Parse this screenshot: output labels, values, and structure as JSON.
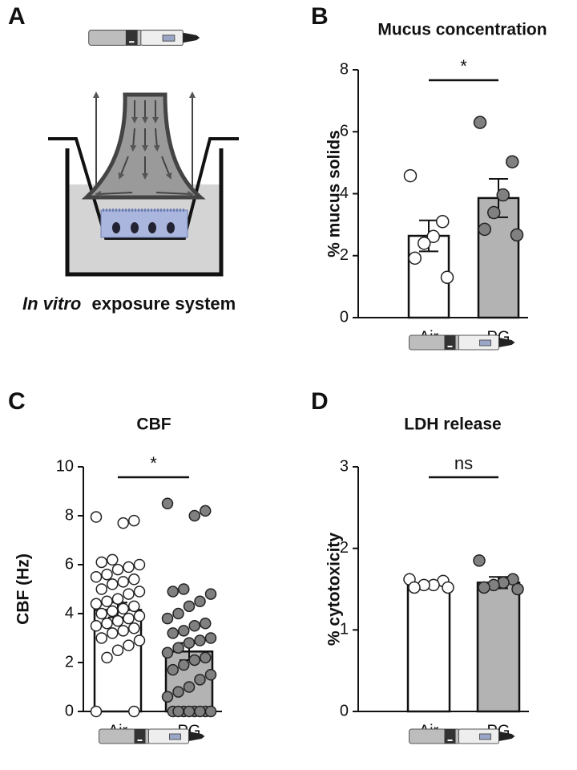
{
  "diagram": {
    "panel": "A",
    "caption_italic": "In vitro",
    "caption_rest": "exposure system"
  },
  "chart_data": [
    {
      "type": "bar",
      "panel": "B",
      "title": "Mucus concentration",
      "ylabel": "% mucus solids",
      "categories": [
        "Air",
        "PG"
      ],
      "values": [
        2.64,
        3.86
      ],
      "errors": [
        0.5,
        0.62
      ],
      "colors": [
        "#ffffff",
        "#b3b3b3"
      ],
      "point_colors": [
        "#ffffff",
        "#808080"
      ],
      "points": [
        [
          4.58,
          3.1,
          2.62,
          2.4,
          1.92,
          1.3
        ],
        [
          6.3,
          5.03,
          3.96,
          3.39,
          2.85,
          2.67
        ]
      ],
      "ylim": [
        0,
        8
      ],
      "yticks": [
        0,
        2,
        4,
        6,
        8
      ],
      "annotation": "*"
    },
    {
      "type": "bar",
      "panel": "C",
      "title": "CBF",
      "ylabel": "CBF (Hz)",
      "categories": [
        "Air",
        "PG"
      ],
      "values": [
        4.15,
        2.45
      ],
      "errors": [
        0.3,
        0.35
      ],
      "colors": [
        "#ffffff",
        "#b3b3b3"
      ],
      "point_colors": [
        "#ffffff",
        "#808080"
      ],
      "points": [
        [
          7.95,
          7.8,
          7.7,
          6.2,
          6.1,
          6.0,
          5.9,
          5.8,
          5.6,
          5.5,
          5.4,
          5.3,
          5.2,
          5.0,
          4.9,
          4.8,
          4.6,
          4.5,
          4.4,
          4.3,
          4.2,
          4.1,
          4.0,
          3.9,
          3.8,
          3.7,
          3.6,
          3.5,
          3.4,
          3.3,
          3.2,
          3.0,
          2.9,
          2.7,
          2.5,
          2.2,
          0,
          0
        ],
        [
          8.5,
          8.2,
          8.0,
          5.0,
          4.9,
          4.8,
          4.5,
          4.3,
          4.0,
          3.8,
          3.6,
          3.5,
          3.3,
          3.2,
          3.0,
          2.9,
          2.8,
          2.6,
          2.4,
          2.2,
          2.1,
          1.9,
          1.7,
          1.5,
          1.3,
          1.0,
          0.8,
          0.6,
          0,
          0,
          0,
          0,
          0,
          0,
          0,
          0
        ]
      ],
      "ylim": [
        0,
        10
      ],
      "yticks": [
        0,
        2,
        4,
        6,
        8,
        10
      ],
      "annotation": "*"
    },
    {
      "type": "bar",
      "panel": "D",
      "title": "LDH release",
      "ylabel": "% cytotoxicity",
      "categories": [
        "Air",
        "PG"
      ],
      "values": [
        1.55,
        1.58
      ],
      "errors": [
        0.03,
        0.07
      ],
      "colors": [
        "#ffffff",
        "#b3b3b3"
      ],
      "point_colors": [
        "#ffffff",
        "#808080"
      ],
      "points": [
        [
          1.62,
          1.6,
          1.55,
          1.55,
          1.52,
          1.52
        ],
        [
          1.85,
          1.62,
          1.58,
          1.55,
          1.52,
          1.5
        ]
      ],
      "ylim": [
        0,
        3
      ],
      "yticks": [
        0,
        1,
        2,
        3
      ],
      "annotation": "ns"
    }
  ]
}
